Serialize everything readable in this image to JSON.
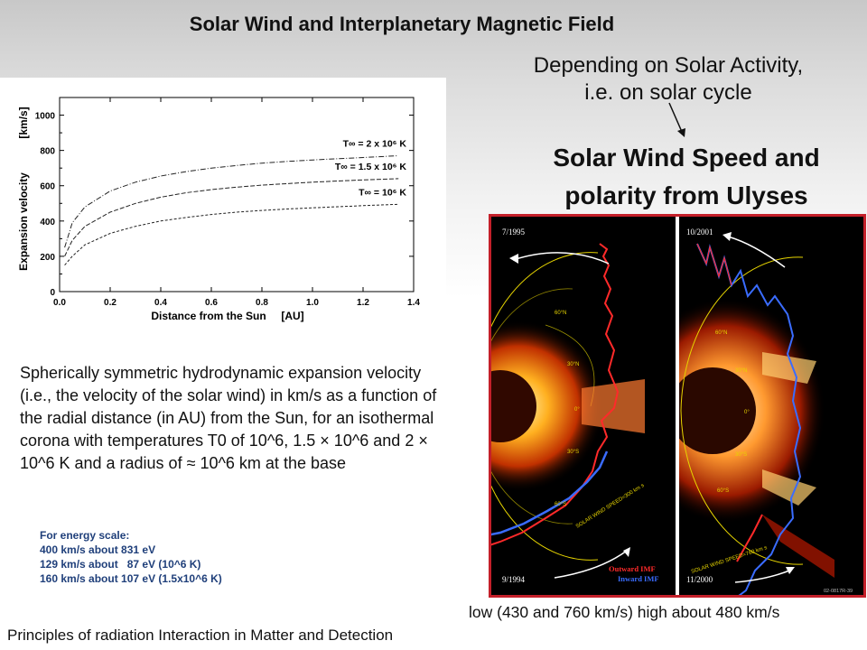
{
  "slide": {
    "title": "Solar Wind and Interplanetary Magnetic Field",
    "depending_line1": "Depending on Solar Activity,",
    "depending_line2": "i.e. on solar cycle",
    "sw_title_line1": "Solar Wind Speed and",
    "sw_title_line2": "polarity from Ulyses",
    "description": "Spherically symmetric hydrodynamic expansion velocity (i.e., the velocity of the solar wind) in km/s as a function of the radial distance (in AU) from the Sun, for an isothermal corona with temperatures T0 of 10^6, 1.5 × 10^6 and 2 × 10^6 K and a radius of ≈ 10^6 km at the base",
    "energy_scale": {
      "heading": "For energy scale:",
      "lines": [
        "400 km/s about 831 eV",
        "129 km/s about   87 eV (10^6 K)",
        "160 km/s about 107 eV (1.5x10^6 K)"
      ]
    },
    "footer": "Principles of radiation Interaction in Matter and Detection",
    "image_caption": "low (430 and 760 km/s) high  about 480 km/s"
  },
  "ulysses_image": {
    "left_date_top": "7/1995",
    "left_date_bottom": "9/1994",
    "right_date_top": "10/2001",
    "right_date_bottom": "11/2000",
    "left_speed_label": "SOLAR WIND SPEED=300 km s",
    "right_speed_label": "SOLAR WIND SPEED=760 km s",
    "legend_outward": "Outward IMF",
    "legend_inward": "Inward IMF",
    "code": "02-0817R-39",
    "lat_labels": [
      "60°N",
      "30°N",
      "0°",
      "30°S",
      "60°S"
    ],
    "colors": {
      "outward": "#ff2a2a",
      "inward": "#3a6cff",
      "ring": "#e6d400",
      "frame": "#c4202a"
    }
  },
  "chart_data": {
    "type": "line",
    "xlabel": "Distance from the Sun     [AU]",
    "ylabel": "Expansion velocity",
    "yunit": "[km/s]",
    "xlim": [
      0.0,
      1.4
    ],
    "ylim": [
      0,
      1100
    ],
    "xticks": [
      "0.0",
      "0.2",
      "0.4",
      "0.6",
      "0.8",
      "1.0",
      "1.2",
      "1.4"
    ],
    "yticks": [
      "0",
      "200",
      "400",
      "600",
      "800",
      "1000"
    ],
    "series": [
      {
        "name": "T∞ = 2 x 10⁶ K",
        "x": [
          0.02,
          0.05,
          0.1,
          0.2,
          0.3,
          0.4,
          0.5,
          0.6,
          0.7,
          0.8,
          0.9,
          1.0,
          1.1,
          1.2,
          1.34
        ],
        "y": [
          250,
          390,
          480,
          570,
          620,
          655,
          680,
          700,
          715,
          728,
          738,
          746,
          753,
          760,
          770
        ]
      },
      {
        "name": "T∞ = 1.5 x 10⁶ K",
        "x": [
          0.02,
          0.05,
          0.1,
          0.2,
          0.3,
          0.4,
          0.5,
          0.6,
          0.7,
          0.8,
          0.9,
          1.0,
          1.1,
          1.2,
          1.34
        ],
        "y": [
          200,
          290,
          370,
          450,
          500,
          535,
          560,
          578,
          592,
          603,
          612,
          620,
          627,
          633,
          640
        ]
      },
      {
        "name": "T∞ = 10⁶ K",
        "x": [
          0.02,
          0.05,
          0.1,
          0.2,
          0.3,
          0.4,
          0.5,
          0.6,
          0.7,
          0.8,
          0.9,
          1.0,
          1.1,
          1.2,
          1.34
        ],
        "y": [
          150,
          200,
          265,
          330,
          370,
          400,
          420,
          437,
          450,
          460,
          468,
          475,
          481,
          487,
          495
        ]
      }
    ]
  }
}
